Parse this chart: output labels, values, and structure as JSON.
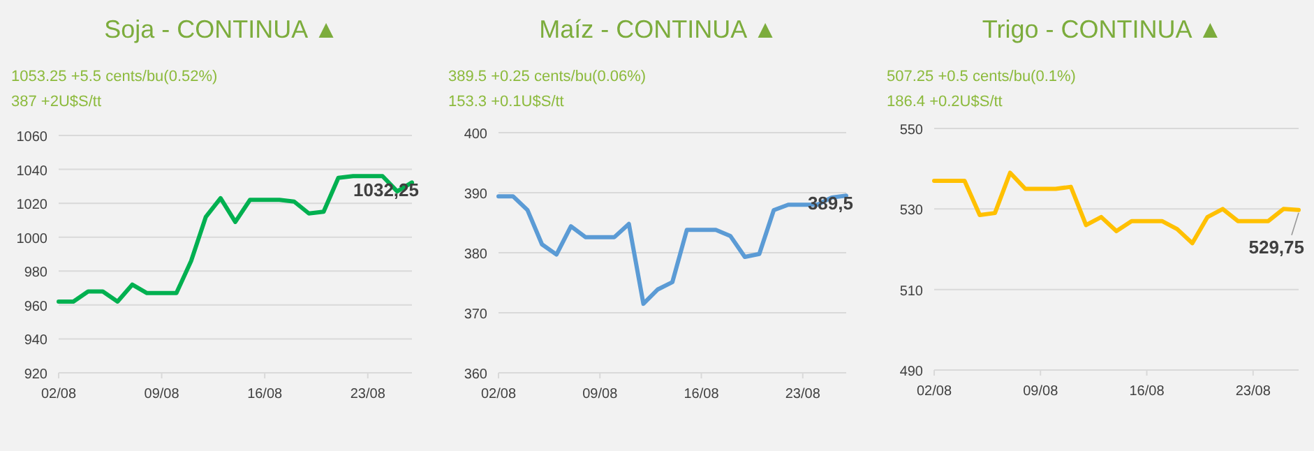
{
  "chart_data": [
    {
      "type": "line",
      "title": "Soja - CONTINUA ▲",
      "subtitle": "1053.25 +5.5 cents/bu(0.52%)\n387 +2U$S/tt",
      "x": [
        "--08-02",
        "--08-03",
        "--08-04",
        "--08-05",
        "--08-06",
        "--08-07",
        "--08-08",
        "--08-09",
        "--08-10",
        "--08-11",
        "--08-12",
        "--08-13",
        "--08-14",
        "--08-15",
        "--08-16",
        "--08-17",
        "--08-18",
        "--08-19",
        "--08-20",
        "--08-21",
        "--08-22",
        "--08-23",
        "--08-24",
        "--08-25",
        "--08-26"
      ],
      "series": [
        {
          "color": "#00b050",
          "values": [
            962,
            962,
            968,
            968,
            962,
            972,
            967,
            967,
            967,
            986,
            1012,
            1023,
            1009,
            1022,
            1022,
            1022,
            1021,
            1014,
            1015,
            1035,
            1036,
            1036,
            1036,
            1027,
            1032.25
          ],
          "value_labels": [
            null,
            null,
            null,
            null,
            null,
            null,
            null,
            null,
            null,
            null,
            null,
            null,
            null,
            null,
            null,
            null,
            null,
            null,
            null,
            null,
            null,
            null,
            null,
            null,
            "1032,25"
          ]
        }
      ],
      "xlim": [
        "--08-02",
        "--08-26"
      ],
      "xticks": [
        {
          "value": "--08-02",
          "label": "02/08"
        },
        {
          "value": "--08-09",
          "label": "09/08"
        },
        {
          "value": "--08-16",
          "label": "16/08"
        },
        {
          "value": "--08-23",
          "label": "23/08"
        }
      ],
      "ylim": [
        920,
        1060
      ],
      "yticks": [
        920,
        940,
        960,
        980,
        1000,
        1020,
        1040,
        1060
      ],
      "grid": "y",
      "marker": "none",
      "line_style": "solid"
    },
    {
      "type": "line",
      "title": "Maíz - CONTINUA ▲",
      "subtitle": "389.5 +0.25 cents/bu(0.06%)\n153.3 +0.1U$S/tt",
      "x": [
        "--08-02",
        "--08-03",
        "--08-04",
        "--08-05",
        "--08-06",
        "--08-07",
        "--08-08",
        "--08-09",
        "--08-10",
        "--08-11",
        "--08-12",
        "--08-13",
        "--08-14",
        "--08-15",
        "--08-16",
        "--08-17",
        "--08-18",
        "--08-19",
        "--08-20",
        "--08-21",
        "--08-22",
        "--08-23",
        "--08-24",
        "--08-25",
        "--08-26"
      ],
      "series": [
        {
          "color": "#5b9bd5",
          "values": [
            389.4,
            389.4,
            387.1,
            381.4,
            379.7,
            384.4,
            382.6,
            382.6,
            382.6,
            384.8,
            371.5,
            373.9,
            375.1,
            383.8,
            383.8,
            383.8,
            382.8,
            379.3,
            379.8,
            387.1,
            388,
            388,
            388,
            389.2,
            389.5
          ],
          "value_labels": [
            null,
            null,
            null,
            null,
            null,
            null,
            null,
            null,
            null,
            null,
            null,
            null,
            null,
            null,
            null,
            null,
            null,
            null,
            null,
            null,
            null,
            null,
            null,
            null,
            "389,5"
          ]
        }
      ],
      "xlim": [
        "--08-02",
        "--08-26"
      ],
      "xticks": [
        {
          "value": "--08-02",
          "label": "02/08"
        },
        {
          "value": "--08-09",
          "label": "09/08"
        },
        {
          "value": "--08-16",
          "label": "16/08"
        },
        {
          "value": "--08-23",
          "label": "23/08"
        }
      ],
      "ylim": [
        360,
        400
      ],
      "yticks": [
        360,
        370,
        380,
        390,
        400
      ],
      "grid": "y",
      "marker": "none",
      "line_style": "solid"
    },
    {
      "type": "line",
      "title": "Trigo - CONTINUA ▲",
      "subtitle": "507.25 +0.5 cents/bu(0.1%)\n186.4 +0.2U$S/tt",
      "x": [
        "--08-02",
        "--08-03",
        "--08-04",
        "--08-05",
        "--08-06",
        "--08-07",
        "--08-08",
        "--08-09",
        "--08-10",
        "--08-11",
        "--08-12",
        "--08-13",
        "--08-14",
        "--08-15",
        "--08-16",
        "--08-17",
        "--08-18",
        "--08-19",
        "--08-20",
        "--08-21",
        "--08-22",
        "--08-23",
        "--08-24",
        "--08-25",
        "--08-26"
      ],
      "series": [
        {
          "color": "#ffc000",
          "values": [
            537,
            537,
            537,
            528.5,
            529,
            539,
            535,
            535,
            535,
            535.5,
            526,
            528,
            524.5,
            527,
            527,
            527,
            525,
            521.5,
            528,
            530,
            527,
            527,
            527,
            530,
            529.75
          ],
          "value_labels": [
            null,
            null,
            null,
            null,
            null,
            null,
            null,
            null,
            null,
            null,
            null,
            null,
            null,
            null,
            null,
            null,
            null,
            null,
            null,
            null,
            null,
            null,
            null,
            null,
            "529,75"
          ]
        }
      ],
      "xlim": [
        "--08-02",
        "--08-26"
      ],
      "xticks": [
        {
          "value": "--08-02",
          "label": "02/08"
        },
        {
          "value": "--08-09",
          "label": "09/08"
        },
        {
          "value": "--08-16",
          "label": "16/08"
        },
        {
          "value": "--08-23",
          "label": "23/08"
        }
      ],
      "ylim": [
        490,
        550
      ],
      "yticks": [
        490,
        510,
        530,
        550
      ],
      "grid": "y",
      "marker": "none",
      "line_style": "solid"
    }
  ]
}
